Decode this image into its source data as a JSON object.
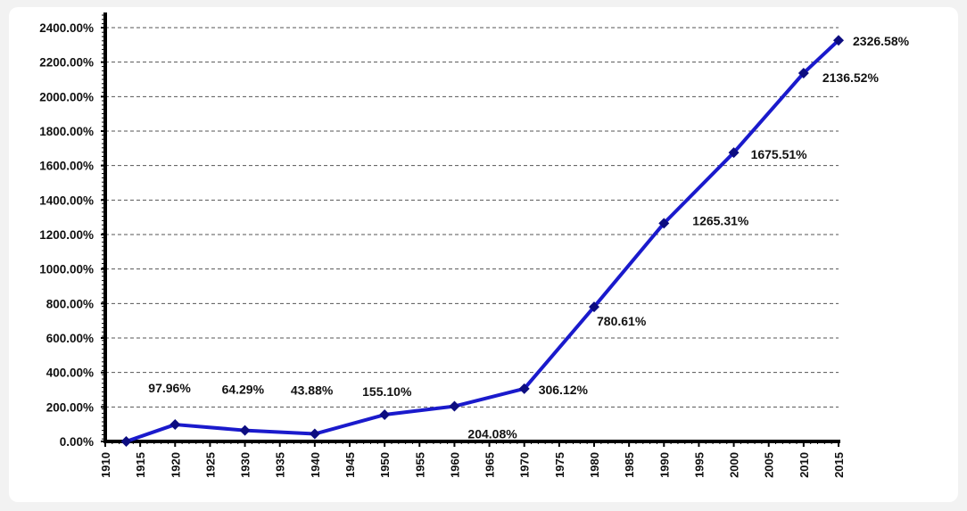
{
  "chart_data": {
    "type": "line",
    "title": "",
    "xlabel": "",
    "ylabel": "",
    "x_ticks": [
      "1910",
      "1915",
      "1920",
      "1925",
      "1930",
      "1935",
      "1940",
      "1945",
      "1950",
      "1955",
      "1960",
      "1965",
      "1970",
      "1975",
      "1980",
      "1985",
      "1990",
      "1995",
      "2000",
      "2005",
      "2010",
      "2015"
    ],
    "y_ticks": [
      "0.00%",
      "200.00%",
      "400.00%",
      "600.00%",
      "800.00%",
      "1000.00%",
      "1200.00%",
      "1400.00%",
      "1600.00%",
      "1800.00%",
      "2000.00%",
      "2200.00%",
      "2400.00%"
    ],
    "xlim": [
      1910,
      2015
    ],
    "ylim": [
      0,
      2400
    ],
    "grid": true,
    "legend": "none",
    "series": [
      {
        "x": [
          1913,
          1920,
          1930,
          1940,
          1950,
          1960,
          1970,
          1980,
          1990,
          2000,
          2010,
          2015
        ],
        "values": [
          0,
          97.96,
          64.29,
          43.88,
          155.1,
          204.08,
          306.12,
          780.61,
          1265.31,
          1675.51,
          2136.52,
          2326.58
        ],
        "labels": [
          "",
          "97.96%",
          "64.29%",
          "43.88%",
          "155.10%",
          "204.08%",
          "306.12%",
          "780.61%",
          "1265.31%",
          "1675.51%",
          "2136.52%",
          "2326.58%"
        ],
        "color": "#1a1acc",
        "marker_color": "#0d0d80"
      }
    ]
  }
}
